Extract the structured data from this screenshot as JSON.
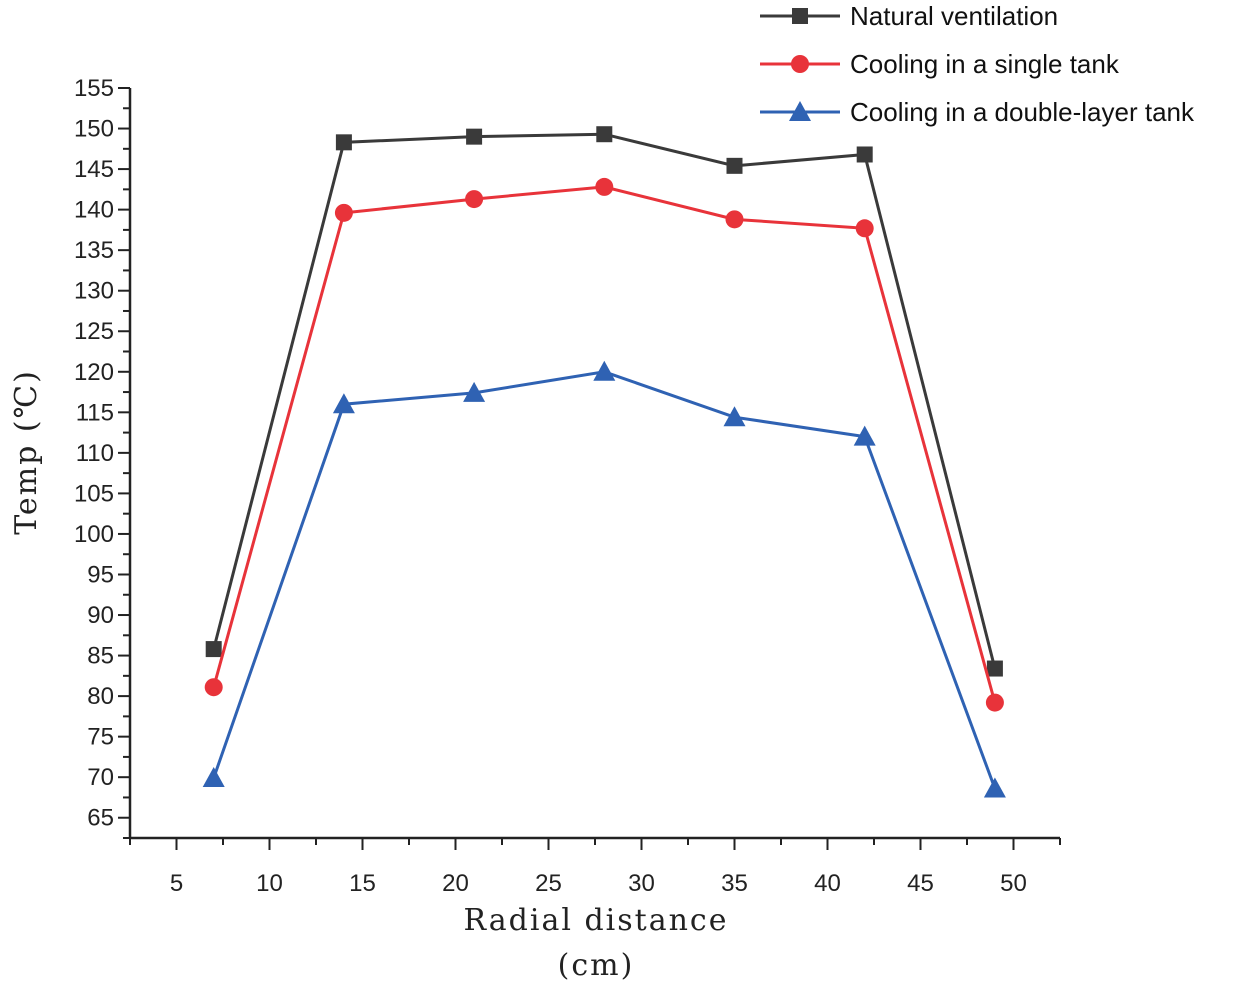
{
  "chart_data": {
    "type": "line",
    "title": "",
    "xlabel": "Radial distance",
    "xlabel_unit": "(cm)",
    "ylabel": "Temp (℃)",
    "xlim": [
      2.5,
      52.5
    ],
    "ylim": [
      62.5,
      155
    ],
    "x_ticks": [
      5,
      10,
      15,
      20,
      25,
      30,
      35,
      40,
      45,
      50
    ],
    "y_ticks": [
      65,
      70,
      75,
      80,
      85,
      90,
      95,
      100,
      105,
      110,
      115,
      120,
      125,
      130,
      135,
      140,
      145,
      150,
      155
    ],
    "grid": false,
    "legend_position": "top-right",
    "x": [
      7,
      14,
      21,
      28,
      35,
      42,
      49
    ],
    "series": [
      {
        "name": "Natural ventilation",
        "marker": "square",
        "color": "#3a3a3a",
        "values": [
          85.8,
          148.3,
          149.0,
          149.3,
          145.4,
          146.8,
          83.4
        ]
      },
      {
        "name": "Cooling in a single tank",
        "marker": "circle",
        "color": "#e8333a",
        "values": [
          81.1,
          139.6,
          141.3,
          142.8,
          138.8,
          137.7,
          79.2
        ]
      },
      {
        "name": "Cooling in a double-layer tank",
        "marker": "triangle",
        "color": "#2f62b3",
        "values": [
          69.9,
          116.0,
          117.4,
          120.0,
          114.4,
          112.0,
          68.6
        ]
      }
    ]
  }
}
